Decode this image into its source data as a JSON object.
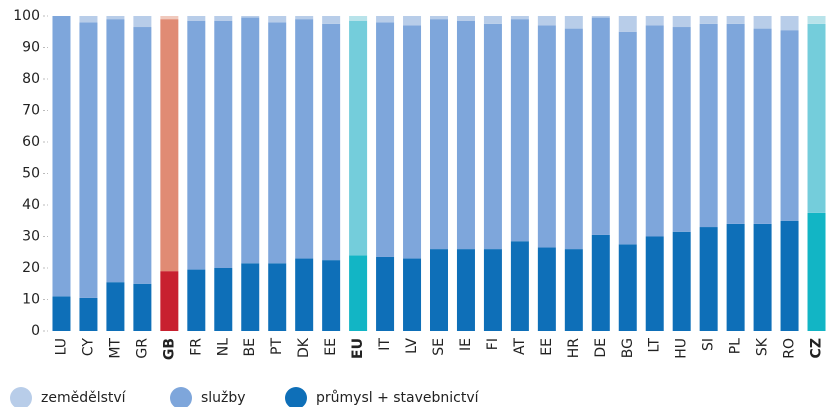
{
  "chart_data": {
    "type": "stacked_bar",
    "categories": [
      "LU",
      "CY",
      "MT",
      "GR",
      "GB",
      "FR",
      "NL",
      "BE",
      "PT",
      "DK",
      "EE",
      "EU",
      "IT",
      "LV",
      "SE",
      "IE",
      "FI",
      "AT",
      "EE",
      "HR",
      "DE",
      "BG",
      "LT",
      "HU",
      "SI",
      "PL",
      "SK",
      "RO",
      "CZ"
    ],
    "series": [
      {
        "name": "průmysl + stavebnictví",
        "color": "#0e6fb8",
        "colors": [
          "#0e6fb8",
          "#0e6fb8",
          "#0e6fb8",
          "#0e6fb8",
          "#c8202f",
          "#0e6fb8",
          "#0e6fb8",
          "#0e6fb8",
          "#0e6fb8",
          "#0e6fb8",
          "#0e6fb8",
          "#12b5c5",
          "#0e6fb8",
          "#0e6fb8",
          "#0e6fb8",
          "#0e6fb8",
          "#0e6fb8",
          "#0e6fb8",
          "#0e6fb8",
          "#0e6fb8",
          "#0e6fb8",
          "#0e6fb8",
          "#0e6fb8",
          "#0e6fb8",
          "#0e6fb8",
          "#0e6fb8",
          "#0e6fb8",
          "#0e6fb8",
          "#12b5c5"
        ],
        "values": [
          11,
          10.5,
          15.5,
          15,
          19,
          19.5,
          20,
          21.5,
          21.5,
          23,
          22.5,
          24,
          23.5,
          23,
          26,
          26,
          26,
          28.5,
          26.5,
          26,
          30.5,
          27.5,
          30,
          31.5,
          33,
          34,
          34,
          35,
          37.5
        ]
      },
      {
        "name": "služby",
        "color": "#7ea6db",
        "colors": [
          "#7ea6db",
          "#7ea6db",
          "#7ea6db",
          "#7ea6db",
          "#e08b74",
          "#7ea6db",
          "#7ea6db",
          "#7ea6db",
          "#7ea6db",
          "#7ea6db",
          "#7ea6db",
          "#74cddb",
          "#7ea6db",
          "#7ea6db",
          "#7ea6db",
          "#7ea6db",
          "#7ea6db",
          "#7ea6db",
          "#7ea6db",
          "#7ea6db",
          "#7ea6db",
          "#7ea6db",
          "#7ea6db",
          "#7ea6db",
          "#7ea6db",
          "#7ea6db",
          "#7ea6db",
          "#7ea6db",
          "#74cddb"
        ],
        "values": [
          89,
          87.5,
          83.5,
          81.5,
          80,
          79,
          78.5,
          78,
          76.5,
          76,
          75,
          74.5,
          74.5,
          74,
          73,
          72.5,
          71.5,
          70.5,
          70.5,
          70,
          69,
          67.5,
          67,
          65,
          64.5,
          63.5,
          62,
          60.5,
          60
        ]
      },
      {
        "name": "zemědělství",
        "color": "#b8cde9",
        "colors": [
          "#b8cde9",
          "#b8cde9",
          "#b8cde9",
          "#b8cde9",
          "#f0c9bd",
          "#b8cde9",
          "#b8cde9",
          "#b8cde9",
          "#b8cde9",
          "#b8cde9",
          "#b8cde9",
          "#b8e3ea",
          "#b8cde9",
          "#b8cde9",
          "#b8cde9",
          "#b8cde9",
          "#b8cde9",
          "#b8cde9",
          "#b8cde9",
          "#b8cde9",
          "#b8cde9",
          "#b8cde9",
          "#b8cde9",
          "#b8cde9",
          "#b8cde9",
          "#b8cde9",
          "#b8cde9",
          "#b8cde9",
          "#b8e3ea"
        ],
        "values": [
          0,
          2,
          1,
          3.5,
          1,
          1.5,
          1.5,
          0.5,
          2,
          1,
          2.5,
          1.5,
          2,
          3,
          1,
          1.5,
          2.5,
          1,
          3,
          4,
          0.5,
          5,
          3,
          3.5,
          2.5,
          2.5,
          4,
          4.5,
          2.5
        ]
      }
    ],
    "ylim": [
      0,
      100
    ],
    "yticks": [
      0,
      10,
      20,
      30,
      40,
      50,
      60,
      70,
      80,
      90,
      100
    ]
  }
}
